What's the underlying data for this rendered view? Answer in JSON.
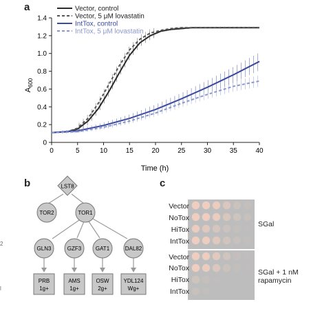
{
  "panels": {
    "a": "a",
    "b": "b",
    "c": "c"
  },
  "chart_data": {
    "type": "line",
    "xlabel": "Time (h)",
    "ylabel": "A600",
    "xlim": [
      0,
      40
    ],
    "ylim": [
      0,
      1.4
    ],
    "xticks": [
      0,
      5,
      10,
      15,
      20,
      25,
      30,
      35,
      40
    ],
    "yticks": [
      0,
      0.2,
      0.4,
      0.6,
      0.8,
      1.0,
      1.2,
      1.4
    ],
    "legend_position": "top-left",
    "series": [
      {
        "name": "Vector, control",
        "color": "#2a2a2a",
        "dash": "solid",
        "x": [
          0,
          3,
          5,
          7,
          9,
          11,
          13,
          15,
          17,
          19,
          21,
          23,
          25,
          27,
          30,
          35,
          40
        ],
        "y": [
          0.11,
          0.12,
          0.15,
          0.24,
          0.38,
          0.57,
          0.78,
          0.98,
          1.12,
          1.2,
          1.25,
          1.27,
          1.28,
          1.29,
          1.29,
          1.29,
          1.29
        ]
      },
      {
        "name": "Vector, 5 μM lovastatin",
        "color": "#555555",
        "dash": "dashed",
        "x": [
          0,
          3,
          5,
          7,
          9,
          11,
          13,
          15,
          17,
          19,
          21,
          23,
          25,
          27,
          30,
          35,
          40
        ],
        "y": [
          0.11,
          0.12,
          0.16,
          0.27,
          0.44,
          0.65,
          0.86,
          1.04,
          1.16,
          1.23,
          1.26,
          1.28,
          1.29,
          1.29,
          1.29,
          1.29,
          1.29
        ]
      },
      {
        "name": "IntTox, control",
        "color": "#3a4aa0",
        "dash": "solid",
        "x": [
          0,
          5,
          10,
          15,
          20,
          25,
          30,
          35,
          40
        ],
        "y": [
          0.11,
          0.13,
          0.19,
          0.27,
          0.37,
          0.49,
          0.62,
          0.76,
          0.91
        ]
      },
      {
        "name": "IntTox, 5 μM lovastatin",
        "color": "#8a97cf",
        "dash": "dashed",
        "x": [
          0,
          5,
          10,
          15,
          20,
          25,
          30,
          35,
          40
        ],
        "y": [
          0.11,
          0.12,
          0.17,
          0.24,
          0.33,
          0.44,
          0.54,
          0.63,
          0.69
        ]
      }
    ]
  },
  "diagram": {
    "top": "LST8",
    "complexes": [
      "TOR2",
      "TOR1"
    ],
    "effectors": [
      "GLN3",
      "GZF3",
      "GAT1",
      "DAL82"
    ],
    "targets": [
      {
        "line1": "PRB",
        "line2": "1g+"
      },
      {
        "line1": "AMS",
        "line2": "1g+"
      },
      {
        "line1": "OSW",
        "line2": "2g+"
      },
      {
        "line1": "YDL124",
        "line2": "Wg+"
      }
    ]
  },
  "spot_assay": {
    "rows": [
      "Vector",
      "NoTox",
      "HiTox",
      "IntTox"
    ],
    "conditions": [
      "SGal",
      "SGal + 1 nM rapamycin"
    ]
  },
  "margin_marks": [
    "2",
    "l"
  ]
}
